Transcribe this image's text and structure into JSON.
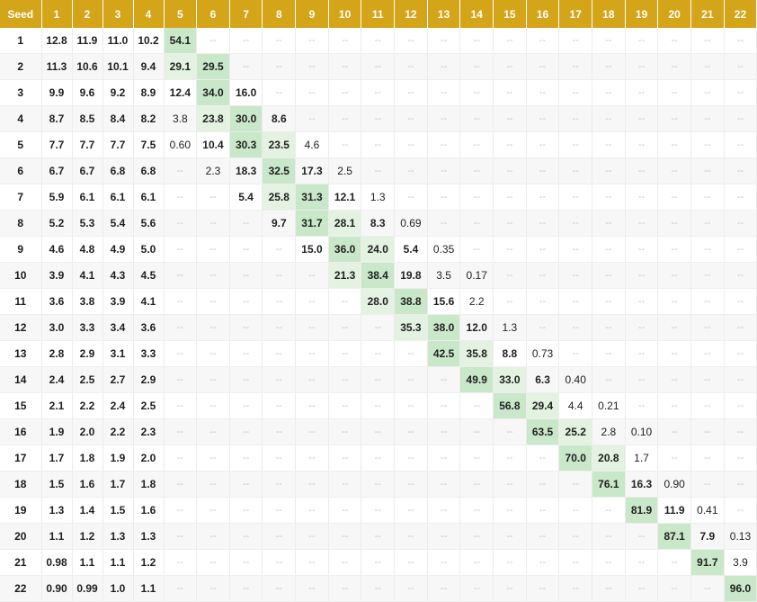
{
  "chart_data": {
    "type": "heatmap",
    "corner_label": "Seed",
    "columns": [
      "1",
      "2",
      "3",
      "4",
      "5",
      "6",
      "7",
      "8",
      "9",
      "10",
      "11",
      "12",
      "13",
      "14",
      "15",
      "16",
      "17",
      "18",
      "19",
      "20",
      "21",
      "22"
    ],
    "rows": [
      "1",
      "2",
      "3",
      "4",
      "5",
      "6",
      "7",
      "8",
      "9",
      "10",
      "11",
      "12",
      "13",
      "14",
      "15",
      "16",
      "17",
      "18",
      "19",
      "20",
      "21",
      "22"
    ],
    "empty_marker": "--",
    "cells": [
      [
        "12.8",
        "11.9",
        "11.0",
        "10.2",
        "54.1",
        "--",
        "--",
        "--",
        "--",
        "--",
        "--",
        "--",
        "--",
        "--",
        "--",
        "--",
        "--",
        "--",
        "--",
        "--",
        "--",
        "--"
      ],
      [
        "11.3",
        "10.6",
        "10.1",
        "9.4",
        "29.1",
        "29.5",
        "--",
        "--",
        "--",
        "--",
        "--",
        "--",
        "--",
        "--",
        "--",
        "--",
        "--",
        "--",
        "--",
        "--",
        "--",
        "--"
      ],
      [
        "9.9",
        "9.6",
        "9.2",
        "8.9",
        "12.4",
        "34.0",
        "16.0",
        "--",
        "--",
        "--",
        "--",
        "--",
        "--",
        "--",
        "--",
        "--",
        "--",
        "--",
        "--",
        "--",
        "--",
        "--"
      ],
      [
        "8.7",
        "8.5",
        "8.4",
        "8.2",
        "3.8",
        "23.8",
        "30.0",
        "8.6",
        "--",
        "--",
        "--",
        "--",
        "--",
        "--",
        "--",
        "--",
        "--",
        "--",
        "--",
        "--",
        "--",
        "--"
      ],
      [
        "7.7",
        "7.7",
        "7.7",
        "7.5",
        "0.60",
        "10.4",
        "30.3",
        "23.5",
        "4.6",
        "--",
        "--",
        "--",
        "--",
        "--",
        "--",
        "--",
        "--",
        "--",
        "--",
        "--",
        "--",
        "--"
      ],
      [
        "6.7",
        "6.7",
        "6.8",
        "6.8",
        "--",
        "2.3",
        "18.3",
        "32.5",
        "17.3",
        "2.5",
        "--",
        "--",
        "--",
        "--",
        "--",
        "--",
        "--",
        "--",
        "--",
        "--",
        "--",
        "--"
      ],
      [
        "5.9",
        "6.1",
        "6.1",
        "6.1",
        "--",
        "--",
        "5.4",
        "25.8",
        "31.3",
        "12.1",
        "1.3",
        "--",
        "--",
        "--",
        "--",
        "--",
        "--",
        "--",
        "--",
        "--",
        "--",
        "--"
      ],
      [
        "5.2",
        "5.3",
        "5.4",
        "5.6",
        "--",
        "--",
        "--",
        "9.7",
        "31.7",
        "28.1",
        "8.3",
        "0.69",
        "--",
        "--",
        "--",
        "--",
        "--",
        "--",
        "--",
        "--",
        "--",
        "--"
      ],
      [
        "4.6",
        "4.8",
        "4.9",
        "5.0",
        "--",
        "--",
        "--",
        "--",
        "15.0",
        "36.0",
        "24.0",
        "5.4",
        "0.35",
        "--",
        "--",
        "--",
        "--",
        "--",
        "--",
        "--",
        "--",
        "--"
      ],
      [
        "3.9",
        "4.1",
        "4.3",
        "4.5",
        "--",
        "--",
        "--",
        "--",
        "--",
        "21.3",
        "38.4",
        "19.8",
        "3.5",
        "0.17",
        "--",
        "--",
        "--",
        "--",
        "--",
        "--",
        "--",
        "--"
      ],
      [
        "3.6",
        "3.8",
        "3.9",
        "4.1",
        "--",
        "--",
        "--",
        "--",
        "--",
        "--",
        "28.0",
        "38.8",
        "15.6",
        "2.2",
        "--",
        "--",
        "--",
        "--",
        "--",
        "--",
        "--",
        "--"
      ],
      [
        "3.0",
        "3.3",
        "3.4",
        "3.6",
        "--",
        "--",
        "--",
        "--",
        "--",
        "--",
        "--",
        "35.3",
        "38.0",
        "12.0",
        "1.3",
        "--",
        "--",
        "--",
        "--",
        "--",
        "--",
        "--"
      ],
      [
        "2.8",
        "2.9",
        "3.1",
        "3.3",
        "--",
        "--",
        "--",
        "--",
        "--",
        "--",
        "--",
        "--",
        "42.5",
        "35.8",
        "8.8",
        "0.73",
        "--",
        "--",
        "--",
        "--",
        "--",
        "--"
      ],
      [
        "2.4",
        "2.5",
        "2.7",
        "2.9",
        "--",
        "--",
        "--",
        "--",
        "--",
        "--",
        "--",
        "--",
        "--",
        "49.9",
        "33.0",
        "6.3",
        "0.40",
        "--",
        "--",
        "--",
        "--",
        "--"
      ],
      [
        "2.1",
        "2.2",
        "2.4",
        "2.5",
        "--",
        "--",
        "--",
        "--",
        "--",
        "--",
        "--",
        "--",
        "--",
        "--",
        "56.8",
        "29.4",
        "4.4",
        "0.21",
        "--",
        "--",
        "--",
        "--"
      ],
      [
        "1.9",
        "2.0",
        "2.2",
        "2.3",
        "--",
        "--",
        "--",
        "--",
        "--",
        "--",
        "--",
        "--",
        "--",
        "--",
        "--",
        "63.5",
        "25.2",
        "2.8",
        "0.10",
        "--",
        "--",
        "--"
      ],
      [
        "1.7",
        "1.8",
        "1.9",
        "2.0",
        "--",
        "--",
        "--",
        "--",
        "--",
        "--",
        "--",
        "--",
        "--",
        "--",
        "--",
        "--",
        "70.0",
        "20.8",
        "1.7",
        "--",
        "--",
        "--"
      ],
      [
        "1.5",
        "1.6",
        "1.7",
        "1.8",
        "--",
        "--",
        "--",
        "--",
        "--",
        "--",
        "--",
        "--",
        "--",
        "--",
        "--",
        "--",
        "--",
        "76.1",
        "16.3",
        "0.90",
        "--",
        "--"
      ],
      [
        "1.3",
        "1.4",
        "1.5",
        "1.6",
        "--",
        "--",
        "--",
        "--",
        "--",
        "--",
        "--",
        "--",
        "--",
        "--",
        "--",
        "--",
        "--",
        "--",
        "81.9",
        "11.9",
        "0.41",
        "--"
      ],
      [
        "1.1",
        "1.2",
        "1.3",
        "1.3",
        "--",
        "--",
        "--",
        "--",
        "--",
        "--",
        "--",
        "--",
        "--",
        "--",
        "--",
        "--",
        "--",
        "--",
        "--",
        "87.1",
        "7.9",
        "0.13"
      ],
      [
        "0.98",
        "1.1",
        "1.1",
        "1.2",
        "--",
        "--",
        "--",
        "--",
        "--",
        "--",
        "--",
        "--",
        "--",
        "--",
        "--",
        "--",
        "--",
        "--",
        "--",
        "--",
        "91.7",
        "3.9"
      ],
      [
        "0.90",
        "0.99",
        "1.0",
        "1.1",
        "--",
        "--",
        "--",
        "--",
        "--",
        "--",
        "--",
        "--",
        "--",
        "--",
        "--",
        "--",
        "--",
        "--",
        "--",
        "--",
        "--",
        "96.0"
      ]
    ],
    "colors": {
      "header_bg": "#d4a419",
      "header_text": "#ffffff",
      "highlight_green": "#c9e7c9",
      "row_stripe": "#f7f7f7",
      "empty_text": "#c4c4c4"
    },
    "legend": "none",
    "grid": true
  }
}
